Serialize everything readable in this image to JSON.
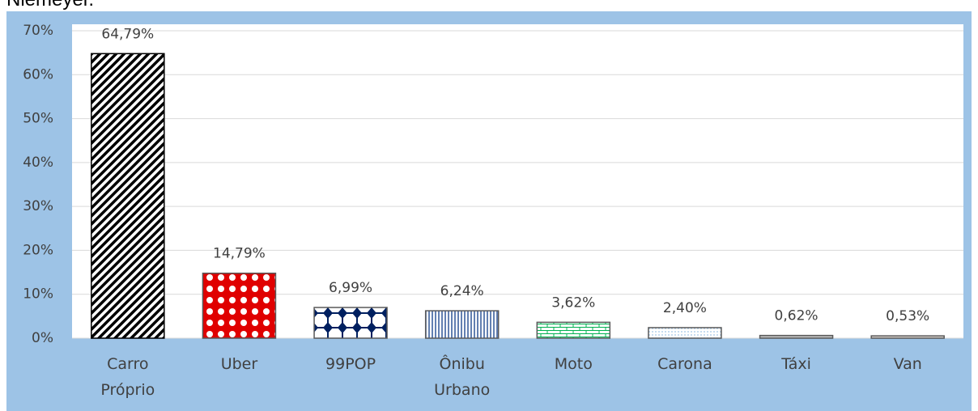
{
  "caption": "Niemeyer.",
  "chart_data": {
    "type": "bar",
    "categories": [
      "Carro Próprio",
      "Uber",
      "99POP",
      "Ônibu Urbano",
      "Moto",
      "Carona",
      "Táxi",
      "Van"
    ],
    "values": [
      64.79,
      14.79,
      6.99,
      6.24,
      3.62,
      2.4,
      0.62,
      0.53
    ],
    "value_labels": [
      "64,79%",
      "14,79%",
      "6,99%",
      "6,24%",
      "3,62%",
      "2,40%",
      "0,62%",
      "0,53%"
    ],
    "colors": [
      "#000000",
      "#e00000",
      "#002060",
      "#2f5597",
      "#00b050",
      "#9dc3e6",
      "#7f7f7f",
      "#a5968a"
    ],
    "ylim": [
      0,
      70
    ],
    "yticks": [
      {
        "value": 0,
        "label": "0%"
      },
      {
        "value": 10,
        "label": "10%"
      },
      {
        "value": 20,
        "label": "20%"
      },
      {
        "value": 30,
        "label": "30%"
      },
      {
        "value": 40,
        "label": "40%"
      },
      {
        "value": 50,
        "label": "50%"
      },
      {
        "value": 60,
        "label": "60%"
      },
      {
        "value": 70,
        "label": "70%"
      }
    ],
    "grid": true
  }
}
